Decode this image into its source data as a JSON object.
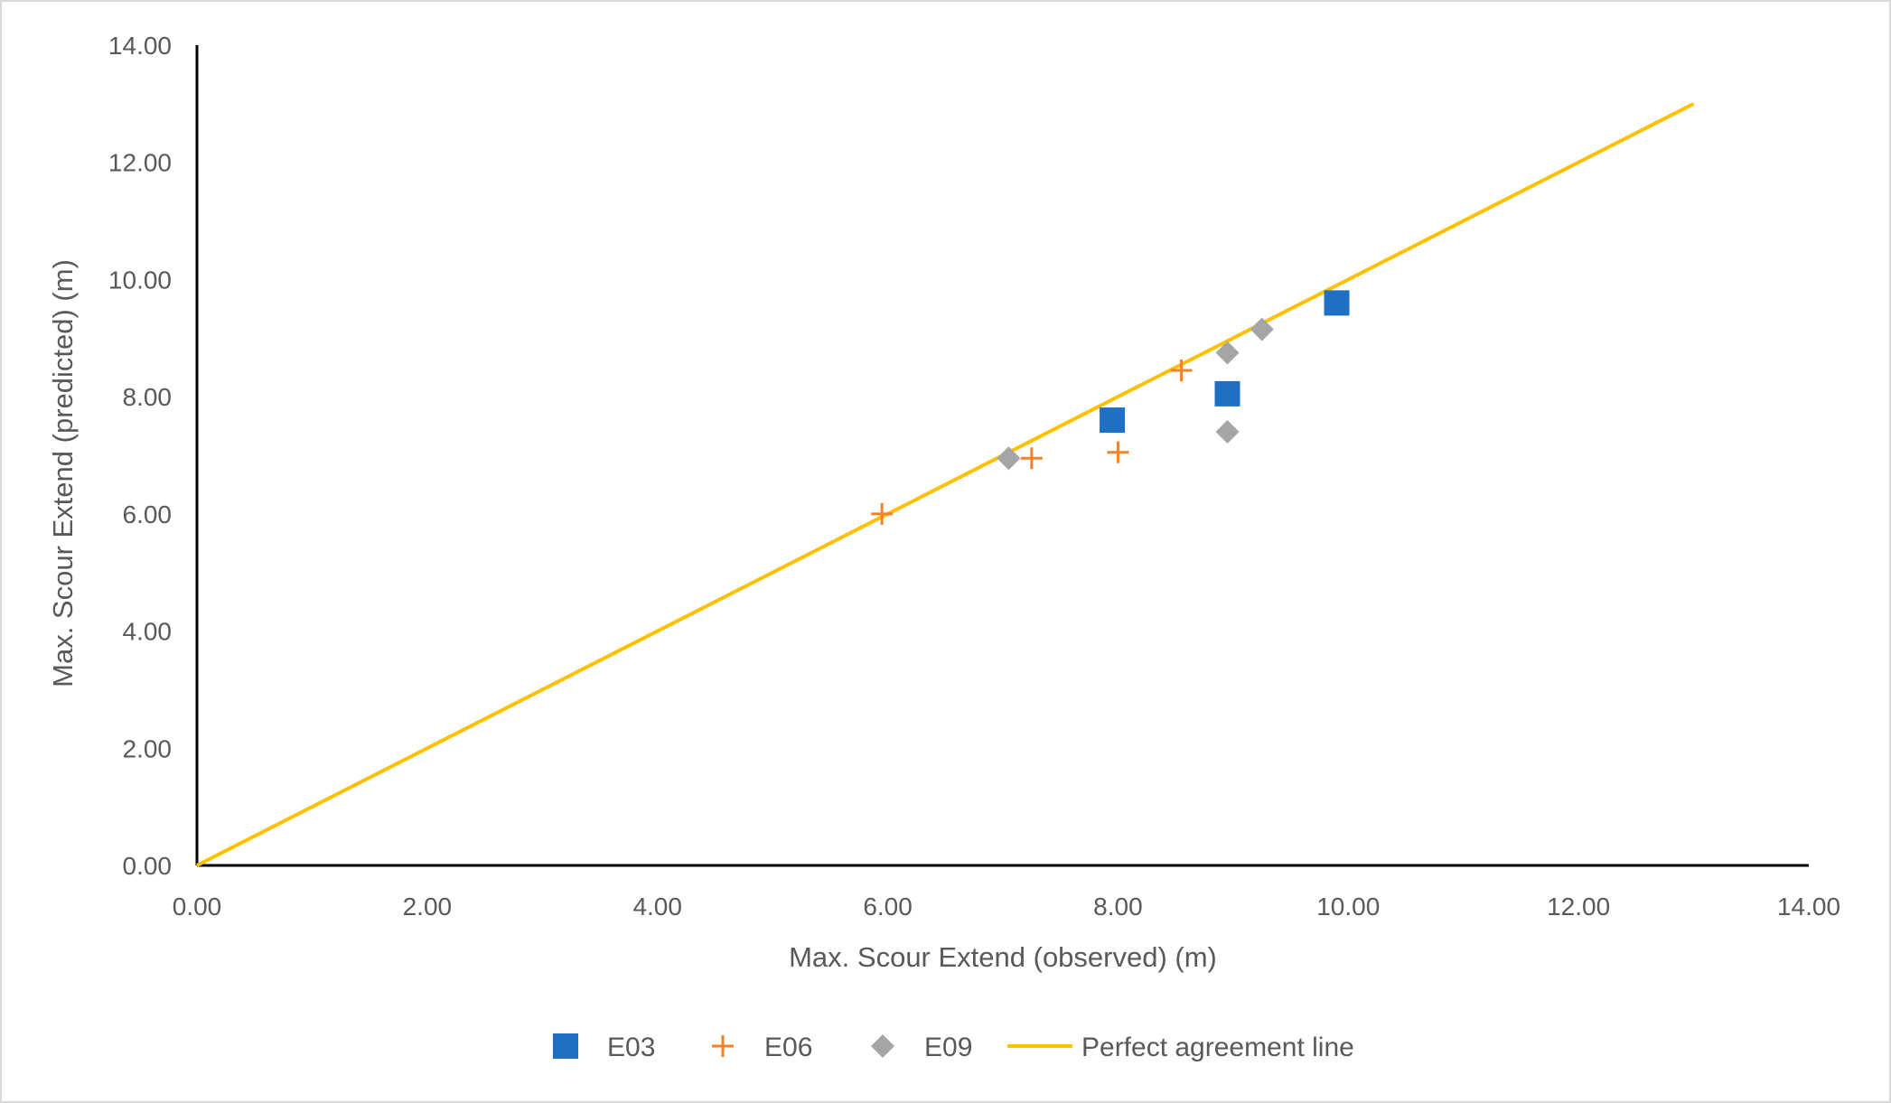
{
  "chart_data": {
    "type": "scatter",
    "title": "",
    "xlabel": "Max. Scour Extend (observed) (m)",
    "ylabel": "Max. Scour Extend (predicted) (m)",
    "xlim": [
      0,
      14
    ],
    "ylim": [
      0,
      14
    ],
    "xticks": [
      "0.00",
      "2.00",
      "4.00",
      "6.00",
      "8.00",
      "10.00",
      "12.00",
      "14.00"
    ],
    "yticks": [
      "0.00",
      "2.00",
      "4.00",
      "6.00",
      "8.00",
      "10.00",
      "12.00",
      "14.00"
    ],
    "grid": false,
    "legend_position": "bottom",
    "series": [
      {
        "name": "E03",
        "marker": "square",
        "color": "#1F6FC5",
        "points": [
          [
            7.95,
            7.6
          ],
          [
            8.95,
            8.05
          ],
          [
            9.9,
            9.6
          ]
        ]
      },
      {
        "name": "E06",
        "marker": "plus",
        "color": "#F4822A",
        "points": [
          [
            5.95,
            6.0
          ],
          [
            7.25,
            6.95
          ],
          [
            8.0,
            7.05
          ],
          [
            8.55,
            8.45
          ]
        ]
      },
      {
        "name": "E09",
        "marker": "diamond",
        "color": "#A5A5A5",
        "points": [
          [
            7.05,
            6.95
          ],
          [
            8.95,
            8.75
          ],
          [
            8.95,
            7.4
          ],
          [
            9.25,
            9.15
          ]
        ]
      },
      {
        "name": "Perfect agreement line",
        "marker": "line",
        "color": "#FFC000",
        "points": [
          [
            0,
            0
          ],
          [
            13.0,
            13.0
          ]
        ]
      }
    ]
  }
}
